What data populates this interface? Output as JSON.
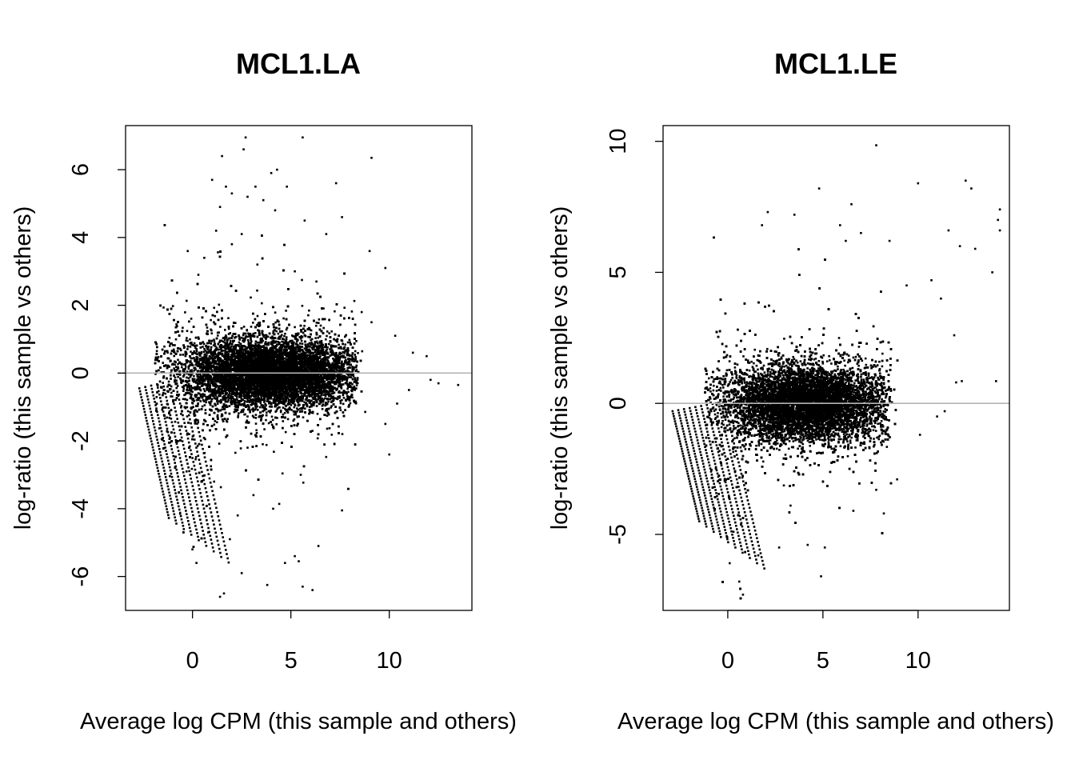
{
  "chart_data": [
    {
      "type": "scatter",
      "title": "MCL1.LA",
      "xlabel": "Average log CPM (this sample and others)",
      "ylabel": "log-ratio (this sample vs others)",
      "xlim": [
        -3.4,
        14.2
      ],
      "ylim": [
        -7.0,
        7.3
      ],
      "x_ticks": [
        0,
        5,
        10
      ],
      "x_tick_labels": [
        "0",
        "5",
        "10"
      ],
      "y_ticks": [
        -6,
        -4,
        -2,
        0,
        2,
        4,
        6
      ],
      "y_tick_labels": [
        "-6",
        "-4",
        "-2",
        "0",
        "2",
        "4",
        "6"
      ],
      "reference_line": {
        "y": 0,
        "color": "#b3b3b3"
      },
      "point_color": "#000000",
      "grid": false,
      "points": [
        [
          1.5,
          6.4
        ],
        [
          2.7,
          6.95
        ],
        [
          5.6,
          6.95
        ],
        [
          9.1,
          6.35
        ],
        [
          2.6,
          6.6
        ],
        [
          4.3,
          6.0
        ],
        [
          4.0,
          5.9
        ],
        [
          1.0,
          5.7
        ],
        [
          1.7,
          5.5
        ],
        [
          3.2,
          5.5
        ],
        [
          2.0,
          5.3
        ],
        [
          4.8,
          5.5
        ],
        [
          7.3,
          5.6
        ],
        [
          2.8,
          5.2
        ],
        [
          3.6,
          5.1
        ],
        [
          1.4,
          4.9
        ],
        [
          4.2,
          4.8
        ],
        [
          7.6,
          4.6
        ],
        [
          5.7,
          4.5
        ],
        [
          1.2,
          4.2
        ],
        [
          2.5,
          4.1
        ],
        [
          6.8,
          4.1
        ],
        [
          9.0,
          3.6
        ],
        [
          0.6,
          3.4
        ],
        [
          2.0,
          3.8
        ],
        [
          3.3,
          3.2
        ],
        [
          9.8,
          3.1
        ],
        [
          0.3,
          2.9
        ],
        [
          5.2,
          3.0
        ],
        [
          6.3,
          2.7
        ],
        [
          8.6,
          1.8
        ],
        [
          9.1,
          1.5
        ],
        [
          10.3,
          1.1
        ],
        [
          11.2,
          0.6
        ],
        [
          11.9,
          0.5
        ],
        [
          12.1,
          -0.2
        ],
        [
          13.5,
          -0.35
        ],
        [
          12.5,
          -0.3
        ],
        [
          11.0,
          -0.5
        ],
        [
          10.4,
          -0.9
        ],
        [
          9.8,
          -1.5
        ],
        [
          10.0,
          -2.4
        ],
        [
          7.6,
          -4.05
        ],
        [
          1.6,
          -6.5
        ],
        [
          1.4,
          -6.6
        ],
        [
          2.5,
          -5.9
        ],
        [
          5.2,
          -5.4
        ],
        [
          5.4,
          -5.55
        ],
        [
          4.7,
          -5.6
        ],
        [
          3.8,
          -6.25
        ],
        [
          5.6,
          -6.3
        ],
        [
          6.1,
          -6.4
        ],
        [
          0.2,
          -5.6
        ],
        [
          0.0,
          -5.2
        ],
        [
          1.9,
          -4.9
        ],
        [
          6.4,
          -5.1
        ],
        [
          0.8,
          -4.7
        ],
        [
          4.1,
          -4.0
        ],
        [
          2.3,
          -4.2
        ],
        [
          3.1,
          -3.6
        ],
        [
          1.1,
          -3.2
        ],
        [
          5.5,
          -3.0
        ],
        [
          -0.3,
          -2.9
        ],
        [
          2.8,
          -2.2
        ]
      ]
    },
    {
      "type": "scatter",
      "title": "MCL1.LE",
      "xlabel": "Average log CPM (this sample and others)",
      "ylabel": "log-ratio (this sample vs others)",
      "xlim": [
        -3.4,
        14.8
      ],
      "ylim": [
        -7.9,
        10.6
      ],
      "x_ticks": [
        0,
        5,
        10
      ],
      "x_tick_labels": [
        "0",
        "5",
        "10"
      ],
      "y_ticks": [
        -5,
        0,
        5,
        10
      ],
      "y_tick_labels": [
        "-5",
        "0",
        "5",
        "10"
      ],
      "reference_line": {
        "y": 0,
        "color": "#b3b3b3"
      },
      "point_color": "#000000",
      "grid": false,
      "points": [
        [
          7.8,
          9.85
        ],
        [
          12.5,
          8.5
        ],
        [
          12.8,
          8.2
        ],
        [
          10.0,
          8.4
        ],
        [
          4.8,
          8.2
        ],
        [
          14.3,
          7.4
        ],
        [
          14.2,
          7.0
        ],
        [
          14.3,
          6.6
        ],
        [
          6.5,
          7.6
        ],
        [
          2.1,
          7.3
        ],
        [
          3.5,
          7.2
        ],
        [
          1.8,
          6.8
        ],
        [
          5.9,
          6.8
        ],
        [
          8.5,
          6.2
        ],
        [
          11.6,
          6.6
        ],
        [
          12.2,
          6.0
        ],
        [
          13.0,
          5.9
        ],
        [
          6.2,
          6.2
        ],
        [
          7.0,
          6.5
        ],
        [
          13.9,
          5.0
        ],
        [
          10.7,
          4.7
        ],
        [
          11.2,
          4.0
        ],
        [
          11.9,
          2.6
        ],
        [
          9.4,
          4.5
        ],
        [
          12.0,
          0.8
        ],
        [
          12.3,
          0.85
        ],
        [
          14.1,
          0.85
        ],
        [
          11.4,
          -0.3
        ],
        [
          11.0,
          -0.5
        ],
        [
          10.1,
          -1.2
        ],
        [
          8.9,
          -2.9
        ],
        [
          8.2,
          -4.2
        ],
        [
          4.2,
          -5.4
        ],
        [
          5.1,
          -5.5
        ],
        [
          4.9,
          -6.6
        ],
        [
          0.1,
          -6.1
        ],
        [
          0.8,
          -7.3
        ],
        [
          0.6,
          -6.8
        ],
        [
          1.6,
          -5.8
        ],
        [
          2.7,
          -5.5
        ],
        [
          7.8,
          -3.3
        ],
        [
          6.6,
          -4.1
        ],
        [
          0.3,
          -4.9
        ],
        [
          3.3,
          -3.9
        ]
      ]
    }
  ]
}
